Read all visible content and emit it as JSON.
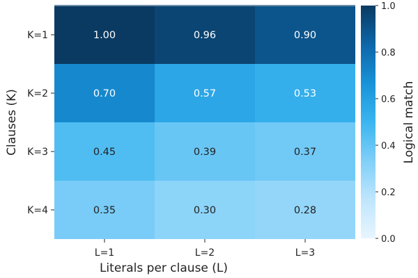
{
  "chart_data": {
    "type": "heatmap",
    "xlabel": "Literals per clause (L)",
    "ylabel": "Clauses (K)",
    "x_categories": [
      "L=1",
      "L=2",
      "L=3"
    ],
    "y_categories": [
      "K=1",
      "K=2",
      "K=3",
      "K=4"
    ],
    "values": [
      [
        1.0,
        0.96,
        0.9
      ],
      [
        0.7,
        0.57,
        0.53
      ],
      [
        0.45,
        0.39,
        0.37
      ],
      [
        0.35,
        0.3,
        0.28
      ]
    ],
    "value_labels": [
      [
        "1.00",
        "0.96",
        "0.90"
      ],
      [
        "0.70",
        "0.57",
        "0.53"
      ],
      [
        "0.45",
        "0.39",
        "0.37"
      ],
      [
        "0.35",
        "0.30",
        "0.28"
      ]
    ],
    "colorbar": {
      "label": "Logical match",
      "range": [
        0.0,
        1.0
      ],
      "ticks": [
        0.0,
        0.2,
        0.4,
        0.6,
        0.8,
        1.0
      ],
      "tick_labels": [
        "0.0",
        "0.2",
        "0.4",
        "0.6",
        "0.8",
        "1.0"
      ]
    },
    "colormap": [
      "#e8f5ff",
      "#bfe6fd",
      "#80cff8",
      "#3ab5f0",
      "#1892d8",
      "#0d66a8",
      "#0a3a62"
    ],
    "annotation_colors": {
      "dark": "#ffffff",
      "light": "#222222"
    },
    "annotation_threshold": 0.5
  }
}
